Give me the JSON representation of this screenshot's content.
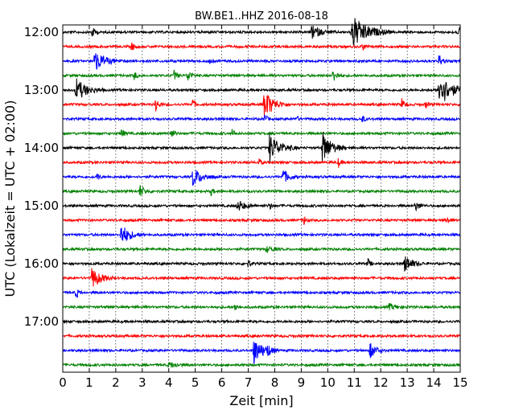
{
  "chart_data": {
    "type": "line",
    "title": "BW.BE1..HHZ 2016-08-18",
    "xlabel": "Zeit  [min]",
    "ylabel": "UTC (Lokalzeit = UTC + 02:00)",
    "xlim": [
      0,
      15
    ],
    "x_ticks": [
      "0",
      "1",
      "2",
      "3",
      "4",
      "5",
      "6",
      "7",
      "8",
      "9",
      "10",
      "11",
      "12",
      "13",
      "14",
      "15"
    ],
    "y_tick_labels": [
      "12:00",
      "13:00",
      "14:00",
      "15:00",
      "16:00",
      "17:00"
    ],
    "grid": true,
    "trace_minutes": 15,
    "colors": [
      "#000000",
      "#ff0000",
      "#0000ff",
      "#008000"
    ],
    "series": [
      {
        "start": "12:00",
        "events": [
          {
            "t": 1.1,
            "a": 0.3,
            "w": 0.1
          },
          {
            "t": 9.4,
            "a": 0.35,
            "w": 0.3
          },
          {
            "t": 10.9,
            "a": 0.9,
            "w": 0.5
          },
          {
            "t": 14.9,
            "a": 0.3,
            "w": 0.2
          }
        ]
      },
      {
        "start": "12:15",
        "events": [
          {
            "t": 2.6,
            "a": 0.25,
            "w": 0.08
          },
          {
            "t": 11.3,
            "a": 0.25,
            "w": 0.08
          }
        ]
      },
      {
        "start": "12:30",
        "events": [
          {
            "t": 1.2,
            "a": 0.55,
            "w": 0.35
          },
          {
            "t": 5.5,
            "a": 0.2,
            "w": 0.08
          },
          {
            "t": 14.2,
            "a": 0.35,
            "w": 0.1
          }
        ]
      },
      {
        "start": "12:45",
        "events": [
          {
            "t": 2.7,
            "a": 0.2,
            "w": 0.08
          },
          {
            "t": 4.2,
            "a": 0.25,
            "w": 0.1
          },
          {
            "t": 4.7,
            "a": 0.4,
            "w": 0.1
          },
          {
            "t": 10.2,
            "a": 0.35,
            "w": 0.15
          }
        ]
      },
      {
        "start": "13:00",
        "events": [
          {
            "t": 0.5,
            "a": 0.6,
            "w": 0.35
          },
          {
            "t": 14.2,
            "a": 0.9,
            "w": 0.4
          }
        ]
      },
      {
        "start": "13:15",
        "events": [
          {
            "t": 3.5,
            "a": 0.35,
            "w": 0.1
          },
          {
            "t": 4.9,
            "a": 0.3,
            "w": 0.08
          },
          {
            "t": 7.6,
            "a": 0.8,
            "w": 0.3
          },
          {
            "t": 12.8,
            "a": 0.35,
            "w": 0.08
          },
          {
            "t": 13.7,
            "a": 0.2,
            "w": 0.08
          }
        ]
      },
      {
        "start": "13:30",
        "events": [
          {
            "t": 7.6,
            "a": 0.3,
            "w": 0.08
          },
          {
            "t": 8.8,
            "a": 0.2,
            "w": 0.08
          },
          {
            "t": 11.3,
            "a": 0.2,
            "w": 0.08
          }
        ]
      },
      {
        "start": "13:45",
        "events": [
          {
            "t": 2.2,
            "a": 0.25,
            "w": 0.1
          },
          {
            "t": 4.1,
            "a": 0.25,
            "w": 0.1
          },
          {
            "t": 6.4,
            "a": 0.25,
            "w": 0.08
          }
        ]
      },
      {
        "start": "14:00",
        "events": [
          {
            "t": 7.8,
            "a": 0.75,
            "w": 0.35
          },
          {
            "t": 9.8,
            "a": 0.85,
            "w": 0.3
          }
        ]
      },
      {
        "start": "14:15",
        "events": [
          {
            "t": 7.4,
            "a": 0.2,
            "w": 0.08
          },
          {
            "t": 10.4,
            "a": 0.25,
            "w": 0.08
          }
        ]
      },
      {
        "start": "14:30",
        "events": [
          {
            "t": 1.3,
            "a": 0.2,
            "w": 0.08
          },
          {
            "t": 4.9,
            "a": 0.5,
            "w": 0.3
          },
          {
            "t": 8.3,
            "a": 0.4,
            "w": 0.2
          }
        ]
      },
      {
        "start": "14:45",
        "events": [
          {
            "t": 2.9,
            "a": 0.35,
            "w": 0.15
          },
          {
            "t": 5.6,
            "a": 0.2,
            "w": 0.08
          }
        ]
      },
      {
        "start": "15:00",
        "events": [
          {
            "t": 6.6,
            "a": 0.3,
            "w": 0.25
          },
          {
            "t": 7.8,
            "a": 0.2,
            "w": 0.08
          },
          {
            "t": 13.3,
            "a": 0.25,
            "w": 0.15
          }
        ]
      },
      {
        "start": "15:15",
        "events": [
          {
            "t": 9.1,
            "a": 0.25,
            "w": 0.08
          },
          {
            "t": 14.5,
            "a": 0.25,
            "w": 0.08
          }
        ]
      },
      {
        "start": "15:30",
        "events": [
          {
            "t": 2.2,
            "a": 0.55,
            "w": 0.3
          }
        ]
      },
      {
        "start": "15:45",
        "events": [
          {
            "t": 7.7,
            "a": 0.15,
            "w": 0.2
          }
        ]
      },
      {
        "start": "16:00",
        "events": [
          {
            "t": 7.0,
            "a": 0.2,
            "w": 0.08
          },
          {
            "t": 11.5,
            "a": 0.3,
            "w": 0.08
          },
          {
            "t": 12.9,
            "a": 0.45,
            "w": 0.25
          }
        ]
      },
      {
        "start": "16:15",
        "events": [
          {
            "t": 1.1,
            "a": 0.55,
            "w": 0.3
          }
        ]
      },
      {
        "start": "16:30",
        "events": [
          {
            "t": 0.5,
            "a": 0.35,
            "w": 0.08
          }
        ]
      },
      {
        "start": "16:45",
        "events": [
          {
            "t": 6.5,
            "a": 0.2,
            "w": 0.08
          },
          {
            "t": 12.3,
            "a": 0.15,
            "w": 0.3
          }
        ]
      },
      {
        "start": "17:00",
        "events": []
      },
      {
        "start": "17:15",
        "events": []
      },
      {
        "start": "17:30",
        "events": [
          {
            "t": 7.2,
            "a": 0.7,
            "w": 0.3
          },
          {
            "t": 7.7,
            "a": 0.3,
            "w": 0.1
          },
          {
            "t": 11.6,
            "a": 0.4,
            "w": 0.2
          }
        ]
      },
      {
        "start": "17:45",
        "events": [
          {
            "t": 4.0,
            "a": 0.15,
            "w": 0.3
          }
        ]
      }
    ]
  }
}
